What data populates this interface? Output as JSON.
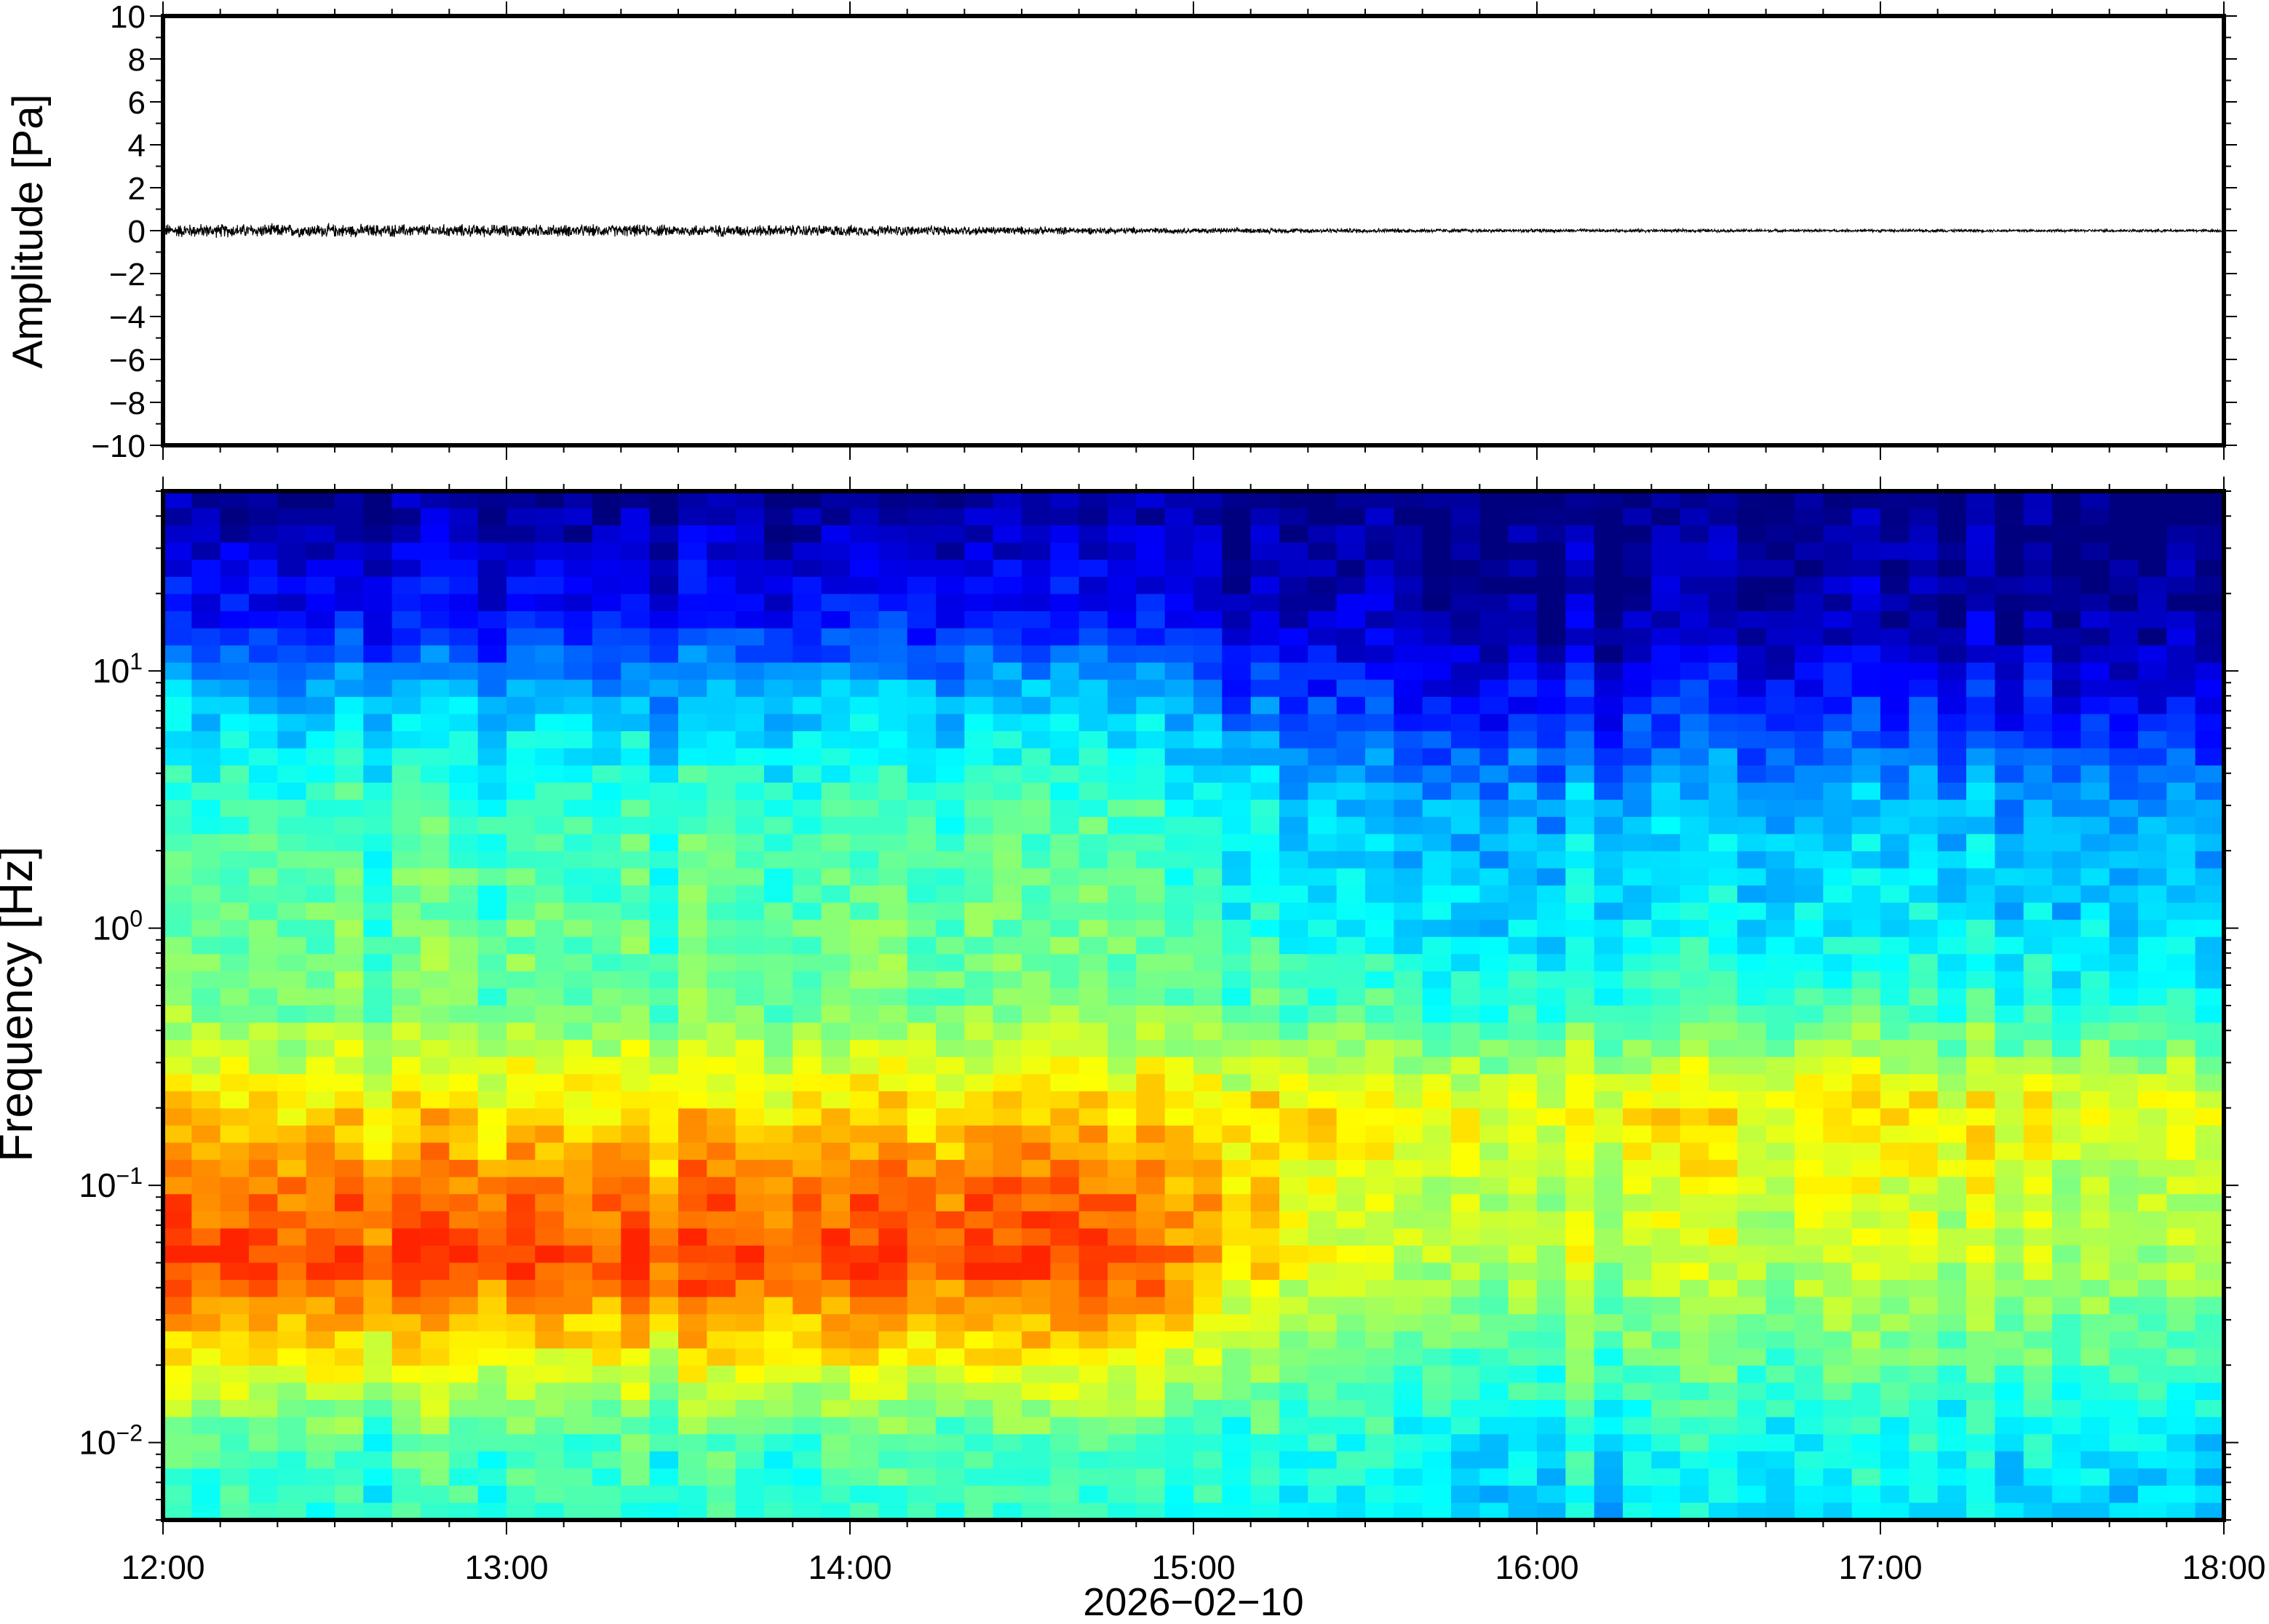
{
  "chart_data": [
    {
      "type": "line",
      "panel": "waveform",
      "ylabel": "Amplitude [Pa]",
      "ylim": [
        -10,
        10
      ],
      "yticks": [
        10,
        8,
        6,
        4,
        2,
        0,
        -2,
        -4,
        -6,
        -8,
        -10
      ],
      "ytick_labels": [
        "10",
        "8",
        "6",
        "4",
        "2",
        "0",
        "−2",
        "−4",
        "−6",
        "−8",
        "−10"
      ],
      "x_range_hours": [
        12,
        18
      ],
      "noise_amplitude_pa_by_hour": [
        {
          "hour": 12.0,
          "amp": 0.25
        },
        {
          "hour": 13.0,
          "amp": 0.22
        },
        {
          "hour": 14.0,
          "amp": 0.2
        },
        {
          "hour": 15.0,
          "amp": 0.1
        },
        {
          "hour": 16.0,
          "amp": 0.06
        },
        {
          "hour": 17.0,
          "amp": 0.05
        },
        {
          "hour": 18.0,
          "amp": 0.05
        }
      ],
      "line_color": "#000000"
    },
    {
      "type": "heatmap",
      "panel": "spectrogram",
      "ylabel": "Frequency [Hz]",
      "yscale": "log",
      "ylim_hz": [
        0.005,
        50
      ],
      "ytick_labels": [
        {
          "value": 10,
          "base": "10",
          "exp": "1"
        },
        {
          "value": 1,
          "base": "10",
          "exp": "0"
        },
        {
          "value": 0.1,
          "base": "10",
          "exp": "−1"
        },
        {
          "value": 0.01,
          "base": "10",
          "exp": "−2"
        }
      ],
      "colormap": "jet",
      "colormap_stops": [
        "#00007f",
        "#0000ff",
        "#007fff",
        "#00ffff",
        "#7fff7f",
        "#ffff00",
        "#ff7f00",
        "#ff0000",
        "#7f0000"
      ],
      "xlabel": "2026−02−10",
      "xticks": [
        "12:00",
        "13:00",
        "14:00",
        "15:00",
        "16:00",
        "17:00",
        "18:00"
      ],
      "x_range_hours": [
        12,
        18
      ],
      "time_columns": 72,
      "frequency_rows": 60,
      "max_color_fraction": 0.84,
      "relative_power_profile_12_to_15": [
        {
          "freq_hz": 0.005,
          "level": 0.4
        },
        {
          "freq_hz": 0.01,
          "level": 0.44
        },
        {
          "freq_hz": 0.02,
          "level": 0.6
        },
        {
          "freq_hz": 0.05,
          "level": 0.8
        },
        {
          "freq_hz": 0.1,
          "level": 0.74
        },
        {
          "freq_hz": 0.2,
          "level": 0.64
        },
        {
          "freq_hz": 0.5,
          "level": 0.48
        },
        {
          "freq_hz": 1,
          "level": 0.46
        },
        {
          "freq_hz": 3,
          "level": 0.42
        },
        {
          "freq_hz": 8,
          "level": 0.3
        },
        {
          "freq_hz": 15,
          "level": 0.14
        },
        {
          "freq_hz": 50,
          "level": 0.0
        }
      ],
      "relative_power_profile_15_to_18": [
        {
          "freq_hz": 0.005,
          "level": 0.34
        },
        {
          "freq_hz": 0.01,
          "level": 0.38
        },
        {
          "freq_hz": 0.02,
          "level": 0.46
        },
        {
          "freq_hz": 0.05,
          "level": 0.56
        },
        {
          "freq_hz": 0.1,
          "level": 0.58
        },
        {
          "freq_hz": 0.2,
          "level": 0.64
        },
        {
          "freq_hz": 0.5,
          "level": 0.42
        },
        {
          "freq_hz": 1,
          "level": 0.36
        },
        {
          "freq_hz": 3,
          "level": 0.3
        },
        {
          "freq_hz": 8,
          "level": 0.14
        },
        {
          "freq_hz": 15,
          "level": 0.05
        },
        {
          "freq_hz": 50,
          "level": 0.0
        }
      ]
    }
  ]
}
